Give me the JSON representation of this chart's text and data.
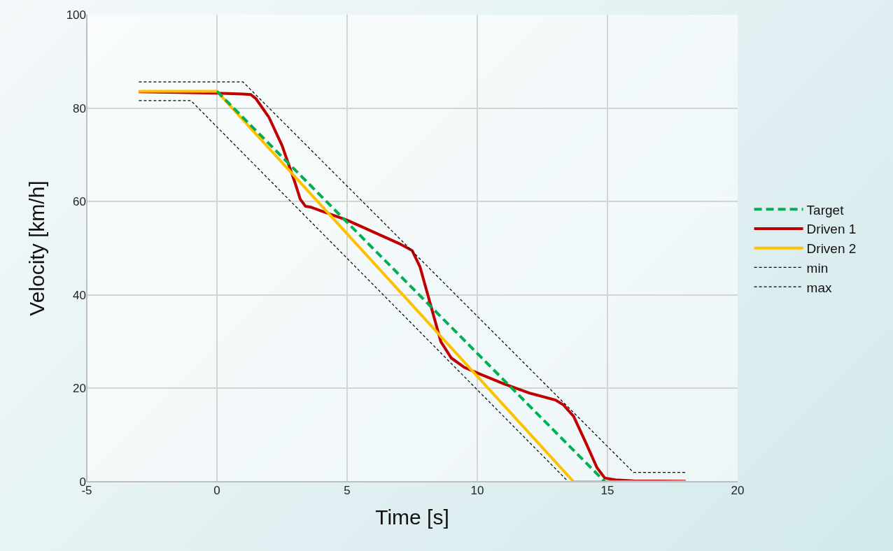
{
  "chart_data": {
    "type": "line",
    "xlabel": "Time [s]",
    "ylabel": "Velocity [km/h]",
    "xlim": [
      -5,
      20
    ],
    "xticks": [
      -5,
      0,
      5,
      10,
      15,
      20
    ],
    "ylim": [
      0,
      100
    ],
    "yticks": [
      0,
      20,
      40,
      60,
      80,
      100
    ],
    "grid": true,
    "legend": "right",
    "marker": "none",
    "series": [
      {
        "name": "Target",
        "color": "#00b050",
        "line_style": "dashed",
        "x": [
          0,
          14.9
        ],
        "values": [
          83.6,
          0
        ]
      },
      {
        "name": "Driven 1",
        "color": "#c00000",
        "line_style": "solid",
        "x": [
          -3,
          0,
          1,
          1.3,
          1.5,
          2,
          2.5,
          3,
          3.2,
          3.4,
          3.6,
          4,
          5,
          6,
          7,
          7.5,
          7.8,
          8.2,
          8.6,
          9,
          9.5,
          10,
          11,
          12,
          13,
          13.3,
          13.7,
          14.2,
          14.6,
          14.9,
          15.3,
          16,
          18
        ],
        "values": [
          83.5,
          83.2,
          83,
          82.9,
          82,
          78,
          72,
          64,
          60.5,
          59,
          58.8,
          58,
          56,
          53.5,
          51,
          49.5,
          46,
          38,
          30,
          26.5,
          24.5,
          23.3,
          21,
          19,
          17.5,
          16.5,
          14,
          8,
          3,
          0.8,
          0.4,
          0.2,
          0.1
        ]
      },
      {
        "name": "Driven 2",
        "color": "#ffc000",
        "line_style": "solid",
        "x": [
          -3,
          0,
          13.7,
          18
        ],
        "values": [
          83.6,
          83.6,
          0,
          0
        ]
      },
      {
        "name": "min",
        "color": "#000000",
        "line_style": "dotted",
        "x": [
          -3,
          -1,
          13.5,
          18
        ],
        "values": [
          81.6,
          81.6,
          0,
          0
        ]
      },
      {
        "name": "max",
        "color": "#000000",
        "line_style": "dotted",
        "x": [
          -3,
          1,
          16,
          18
        ],
        "values": [
          85.6,
          85.6,
          2,
          2
        ]
      }
    ]
  }
}
